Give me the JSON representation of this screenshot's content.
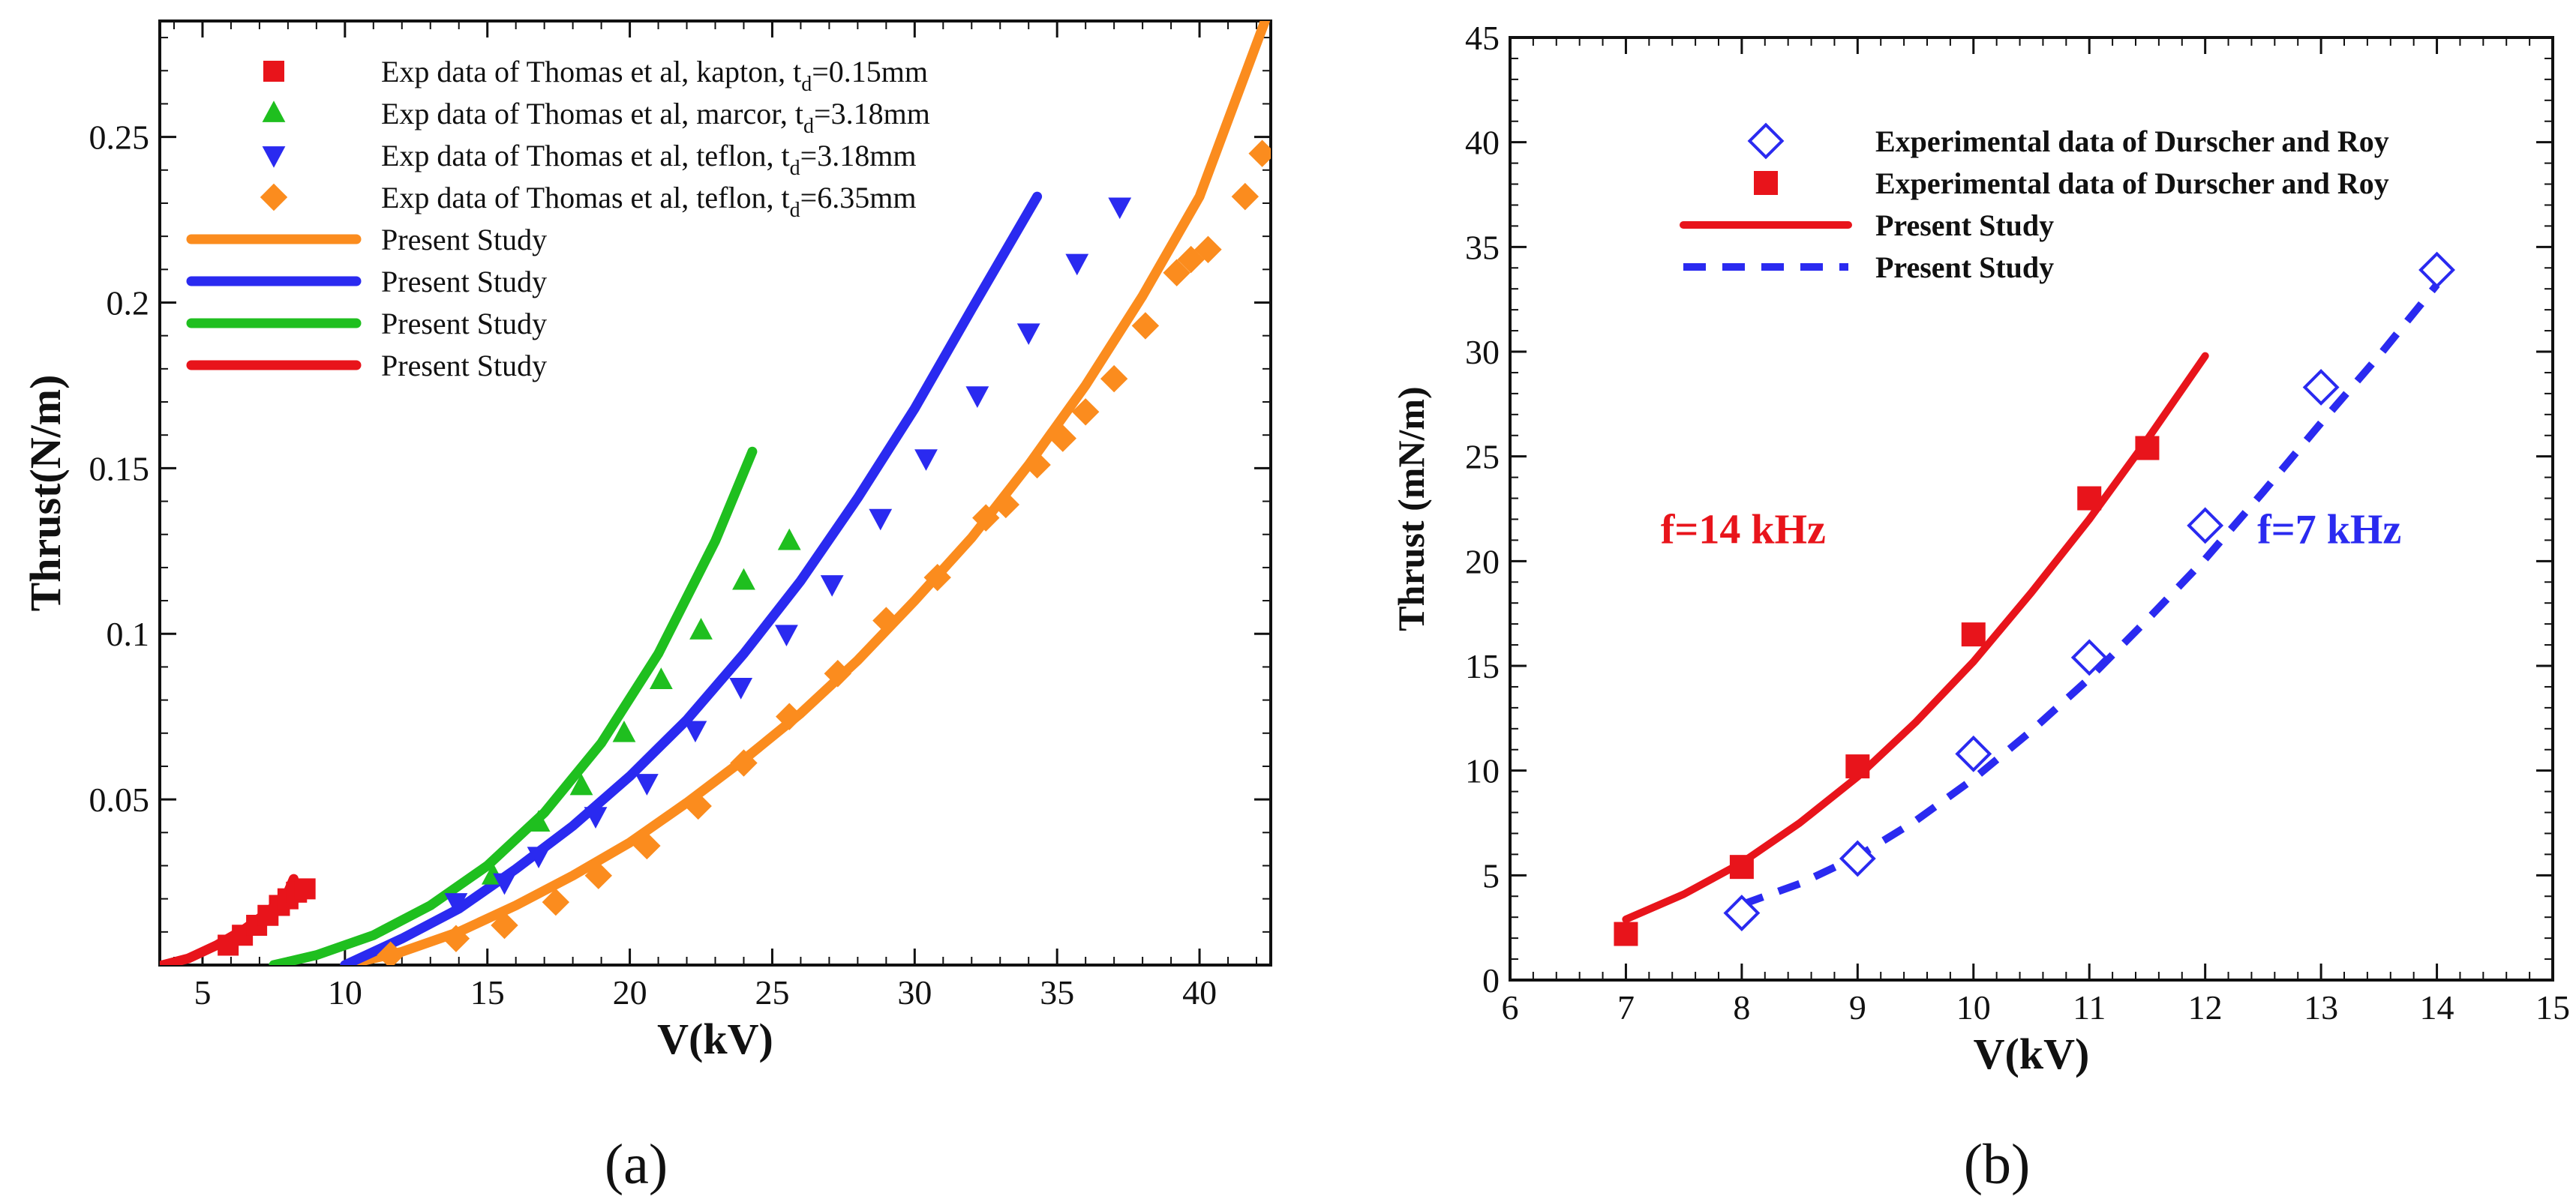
{
  "chart_data": [
    {
      "type": "scatter",
      "panel_label": "(a)",
      "xlabel": "V(kV)",
      "ylabel": "Thrust(N/m)",
      "xlim": [
        3.5,
        42.5
      ],
      "ylim": [
        0,
        0.285
      ],
      "x_ticks": [
        5,
        10,
        15,
        20,
        25,
        30,
        35,
        40
      ],
      "y_ticks": [
        0.05,
        0.1,
        0.15,
        0.2,
        0.25
      ],
      "legend_position": "top-left",
      "grid": false,
      "series": [
        {
          "name": "Exp data of Thomas et al, kapton, t",
          "subscript": "d",
          "suffix": "=0.15mm",
          "kind": "marker",
          "marker": "square",
          "color": "#e8141b",
          "x": [
            5.9,
            6.4,
            6.9,
            7.3,
            7.7,
            8.0,
            8.3,
            8.6
          ],
          "y": [
            0.006,
            0.009,
            0.012,
            0.015,
            0.018,
            0.02,
            0.022,
            0.023
          ]
        },
        {
          "name": "Exp data of Thomas et al, marcor, t",
          "subscript": "d",
          "suffix": "=3.18mm",
          "kind": "marker",
          "marker": "triangle-up",
          "color": "#1fbf1f",
          "x": [
            15.2,
            16.8,
            18.3,
            19.8,
            21.1,
            22.5,
            24.0,
            25.6
          ],
          "y": [
            0.027,
            0.043,
            0.054,
            0.07,
            0.086,
            0.101,
            0.116,
            0.128
          ]
        },
        {
          "name": "Exp data of Thomas et al, teflon, t",
          "subscript": "d",
          "suffix": "=3.18mm",
          "kind": "marker",
          "marker": "triangle-down",
          "color": "#2a2af0",
          "x": [
            13.9,
            15.6,
            16.8,
            18.8,
            20.6,
            22.3,
            23.9,
            25.5,
            27.1,
            28.8,
            30.4,
            32.2,
            34.0,
            35.7,
            37.2
          ],
          "y": [
            0.019,
            0.025,
            0.033,
            0.045,
            0.055,
            0.071,
            0.084,
            0.1,
            0.115,
            0.135,
            0.153,
            0.172,
            0.191,
            0.212,
            0.229
          ]
        },
        {
          "name": "Exp data of Thomas et al, teflon, t",
          "subscript": "d",
          "suffix": "=6.35mm",
          "kind": "marker",
          "marker": "diamond",
          "color": "#fb8c1e",
          "x": [
            11.6,
            13.9,
            15.6,
            17.4,
            18.9,
            20.6,
            22.4,
            24.0,
            25.6,
            27.3,
            29.0,
            30.8,
            32.5,
            33.2,
            34.3,
            35.2,
            36.0,
            37.0,
            38.1,
            39.2,
            39.7,
            40.3,
            41.6,
            42.2
          ],
          "y": [
            0.003,
            0.008,
            0.012,
            0.019,
            0.027,
            0.036,
            0.048,
            0.061,
            0.075,
            0.088,
            0.104,
            0.117,
            0.135,
            0.139,
            0.151,
            0.159,
            0.167,
            0.177,
            0.193,
            0.209,
            0.213,
            0.216,
            0.232,
            0.245
          ]
        },
        {
          "name": "Present Study",
          "kind": "line",
          "dash": false,
          "color": "#fb8c1e",
          "x": [
            10,
            12,
            14,
            16,
            18,
            20,
            22,
            24,
            26,
            28,
            30,
            32,
            34,
            36,
            38,
            40,
            42.3
          ],
          "y": [
            0.0,
            0.004,
            0.01,
            0.018,
            0.027,
            0.037,
            0.049,
            0.062,
            0.076,
            0.092,
            0.11,
            0.129,
            0.151,
            0.175,
            0.202,
            0.232,
            0.285
          ]
        },
        {
          "name": "Present Study",
          "kind": "line",
          "dash": false,
          "color": "#2a2af0",
          "x": [
            10,
            12,
            14,
            16,
            18,
            20,
            22,
            24,
            26,
            28,
            30,
            32,
            34.3
          ],
          "y": [
            0.0,
            0.008,
            0.017,
            0.029,
            0.042,
            0.057,
            0.074,
            0.094,
            0.116,
            0.141,
            0.168,
            0.198,
            0.232
          ]
        },
        {
          "name": "Present Study",
          "kind": "line",
          "dash": false,
          "color": "#1fbf1f",
          "x": [
            7.5,
            9,
            11,
            13,
            15,
            17,
            19,
            21,
            23,
            24.3
          ],
          "y": [
            0.0,
            0.003,
            0.009,
            0.018,
            0.03,
            0.046,
            0.067,
            0.094,
            0.128,
            0.155
          ]
        },
        {
          "name": "Present Study",
          "kind": "line",
          "dash": false,
          "color": "#e8141b",
          "x": [
            3.6,
            4.5,
            5.5,
            6.5,
            7.3,
            8.0,
            8.2
          ],
          "y": [
            0.0,
            0.002,
            0.006,
            0.011,
            0.016,
            0.022,
            0.026
          ]
        }
      ]
    },
    {
      "type": "scatter",
      "panel_label": "(b)",
      "xlabel": "V(kV)",
      "ylabel": "Thrust (mN/m)",
      "xlim": [
        6,
        15
      ],
      "ylim": [
        0,
        45
      ],
      "x_ticks": [
        6,
        7,
        8,
        9,
        10,
        11,
        12,
        13,
        14,
        15
      ],
      "y_ticks": [
        0,
        5,
        10,
        15,
        20,
        25,
        30,
        35,
        40,
        45
      ],
      "legend_position": "top-center",
      "grid": false,
      "annotations": [
        {
          "text": "f=14 kHz",
          "x": 7.3,
          "y": 21.5,
          "color": "#e8141b"
        },
        {
          "text": "f=7 kHz",
          "x": 12.45,
          "y": 21.5,
          "color": "#2a2af0"
        }
      ],
      "series": [
        {
          "name": "Experimental data of Durscher and Roy",
          "kind": "marker",
          "marker": "diamond-open",
          "color": "#2a2af0",
          "x": [
            8,
            9,
            10,
            11,
            12,
            13,
            14
          ],
          "y": [
            3.2,
            5.8,
            10.8,
            15.4,
            21.7,
            28.3,
            33.9
          ]
        },
        {
          "name": "Experimental data of Durscher and Roy",
          "kind": "marker",
          "marker": "square",
          "color": "#e8141b",
          "x": [
            7,
            8,
            9,
            10,
            11,
            11.5
          ],
          "y": [
            2.2,
            5.4,
            10.2,
            16.5,
            23.0,
            25.4
          ]
        },
        {
          "name": "Present Study",
          "kind": "line",
          "dash": false,
          "color": "#e8141b",
          "x": [
            7,
            7.5,
            8,
            8.5,
            9,
            9.5,
            10,
            10.5,
            11,
            11.5,
            12
          ],
          "y": [
            2.9,
            4.1,
            5.6,
            7.5,
            9.7,
            12.3,
            15.2,
            18.5,
            22.0,
            25.8,
            29.8
          ]
        },
        {
          "name": "Present Study",
          "kind": "line",
          "dash": true,
          "color": "#2a2af0",
          "x": [
            8,
            8.5,
            9,
            9.5,
            10,
            10.5,
            11,
            11.5,
            12,
            12.5,
            13,
            13.5,
            14
          ],
          "y": [
            3.6,
            4.6,
            5.9,
            7.6,
            9.6,
            11.9,
            14.4,
            17.2,
            20.1,
            23.3,
            26.6,
            29.8,
            33.2
          ]
        }
      ]
    }
  ]
}
